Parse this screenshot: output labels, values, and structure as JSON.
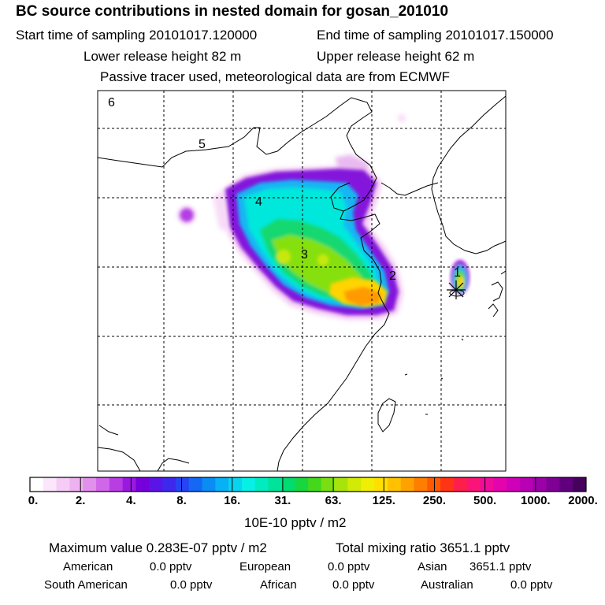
{
  "header": {
    "title": "BC  source contributions in nested domain for gosan_201010",
    "start_label": "Start time of sampling 20101017.120000",
    "end_label": "End time of sampling 20101017.150000",
    "lower_label": "Lower release height   82 m",
    "upper_label": "Upper release height   62 m",
    "note": "Passive tracer used, meteorological data are from ECMWF"
  },
  "map": {
    "region_labels": [
      "1",
      "2",
      "3",
      "4",
      "5",
      "6"
    ],
    "receptor_marker": "star-marker"
  },
  "colorbar": {
    "unit": "10E-10 pptv / m2",
    "tick_labels": [
      "0.",
      "2.",
      "4.",
      "8.",
      "16.",
      "31.",
      "63.",
      "125.",
      "250.",
      "500.",
      "1000.",
      "2000."
    ],
    "colors": [
      "#ffffff",
      "#fbe6fb",
      "#f5ccf5",
      "#eeb2f0",
      "#e190ec",
      "#d066e8",
      "#b83ee4",
      "#9a18e0",
      "#7600dc",
      "#5a14e6",
      "#3e28ee",
      "#2644f2",
      "#1468f4",
      "#0a8cf4",
      "#08b0f4",
      "#08d4f0",
      "#06f0e6",
      "#00ecc0",
      "#00e49a",
      "#00dc70",
      "#18d640",
      "#44d81c",
      "#7ade12",
      "#a8e40c",
      "#d2ea06",
      "#f0ee04",
      "#ffe000",
      "#ffc200",
      "#ffa200",
      "#ff7e00",
      "#ff5a00",
      "#ff3414",
      "#fe1e4c",
      "#fa1478",
      "#f00c9a",
      "#e404ae",
      "#d000b8",
      "#b800b4",
      "#9c00a8",
      "#7e0094",
      "#60007c",
      "#46005e"
    ]
  },
  "stats": {
    "max_label": "Maximum value  0.283E-07 pptv / m2",
    "total_label": "Total mixing ratio     3651.1 pptv"
  },
  "sources": {
    "american_label": "American",
    "american_value": "0.0 pptv",
    "european_label": "European",
    "european_value": "0.0 pptv",
    "asian_label": "Asian",
    "asian_value": "3651.1 pptv",
    "south_american_label": "South American",
    "south_american_value": "0.0 pptv",
    "african_label": "African",
    "african_value": "0.0 pptv",
    "australian_label": "Australian",
    "australian_value": "0.0 pptv"
  }
}
